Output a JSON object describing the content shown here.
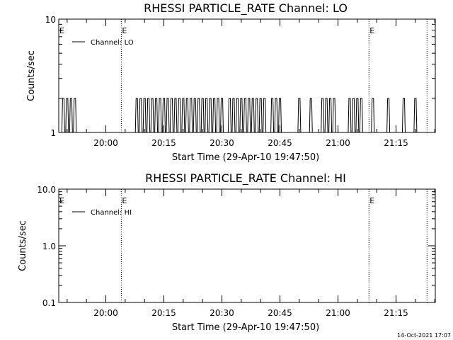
{
  "footer": {
    "timestamp": "14-Oct-2021 17:07"
  },
  "chart_data": [
    {
      "type": "line",
      "title": "RHESSI PARTICLE_RATE Channel: LO",
      "xlabel": "Start Time (29-Apr-10 19:47:50)",
      "ylabel": "Counts/sec",
      "y_scale": "log",
      "ylim": [
        1,
        10
      ],
      "y_ticks": [
        {
          "value": 1,
          "label": "1"
        },
        {
          "value": 10,
          "label": "10"
        }
      ],
      "x_ticks": [
        "20:00",
        "20:15",
        "20:30",
        "20:45",
        "21:00",
        "21:15"
      ],
      "legend": {
        "position": "top-left",
        "entries": [
          "Channel: LO"
        ]
      },
      "markers": [
        {
          "time": "20:04",
          "label": "E"
        },
        {
          "time": "21:08",
          "label": "E"
        },
        {
          "time": "21:23",
          "label": ""
        }
      ],
      "series": [
        {
          "name": "Channel: LO",
          "value_high": 2,
          "value_low": 1,
          "pulses_at": [
            "19:49",
            "19:50",
            "19:51",
            "19:52",
            "20:08",
            "20:09",
            "20:10",
            "20:11",
            "20:12",
            "20:13",
            "20:14",
            "20:15",
            "20:16",
            "20:17",
            "20:18",
            "20:19",
            "20:20",
            "20:21",
            "20:22",
            "20:23",
            "20:24",
            "20:25",
            "20:26",
            "20:27",
            "20:28",
            "20:29",
            "20:30",
            "20:32",
            "20:33",
            "20:34",
            "20:35",
            "20:36",
            "20:37",
            "20:38",
            "20:39",
            "20:40",
            "20:41",
            "20:43",
            "20:44",
            "20:45",
            "20:50",
            "20:53",
            "20:56",
            "20:57",
            "20:58",
            "20:59",
            "21:03",
            "21:04",
            "21:05",
            "21:06",
            "21:09",
            "21:13",
            "21:17",
            "21:20"
          ]
        }
      ]
    },
    {
      "type": "line",
      "title": "RHESSI PARTICLE_RATE Channel: HI",
      "xlabel": "Start Time (29-Apr-10 19:47:50)",
      "ylabel": "Counts/sec",
      "y_scale": "log",
      "ylim": [
        0.1,
        10
      ],
      "y_ticks": [
        {
          "value": 0.1,
          "label": "0.1"
        },
        {
          "value": 1,
          "label": "1.0"
        },
        {
          "value": 10,
          "label": "10.0"
        }
      ],
      "x_ticks": [
        "20:00",
        "20:15",
        "20:30",
        "20:45",
        "21:00",
        "21:15"
      ],
      "legend": {
        "position": "top-left",
        "entries": [
          "Channel: HI"
        ]
      },
      "markers": [
        {
          "time": "20:04",
          "label": "E"
        },
        {
          "time": "21:08",
          "label": "E"
        },
        {
          "time": "21:23",
          "label": ""
        }
      ],
      "series": [
        {
          "name": "Channel: HI",
          "pulses_at": []
        }
      ]
    }
  ]
}
